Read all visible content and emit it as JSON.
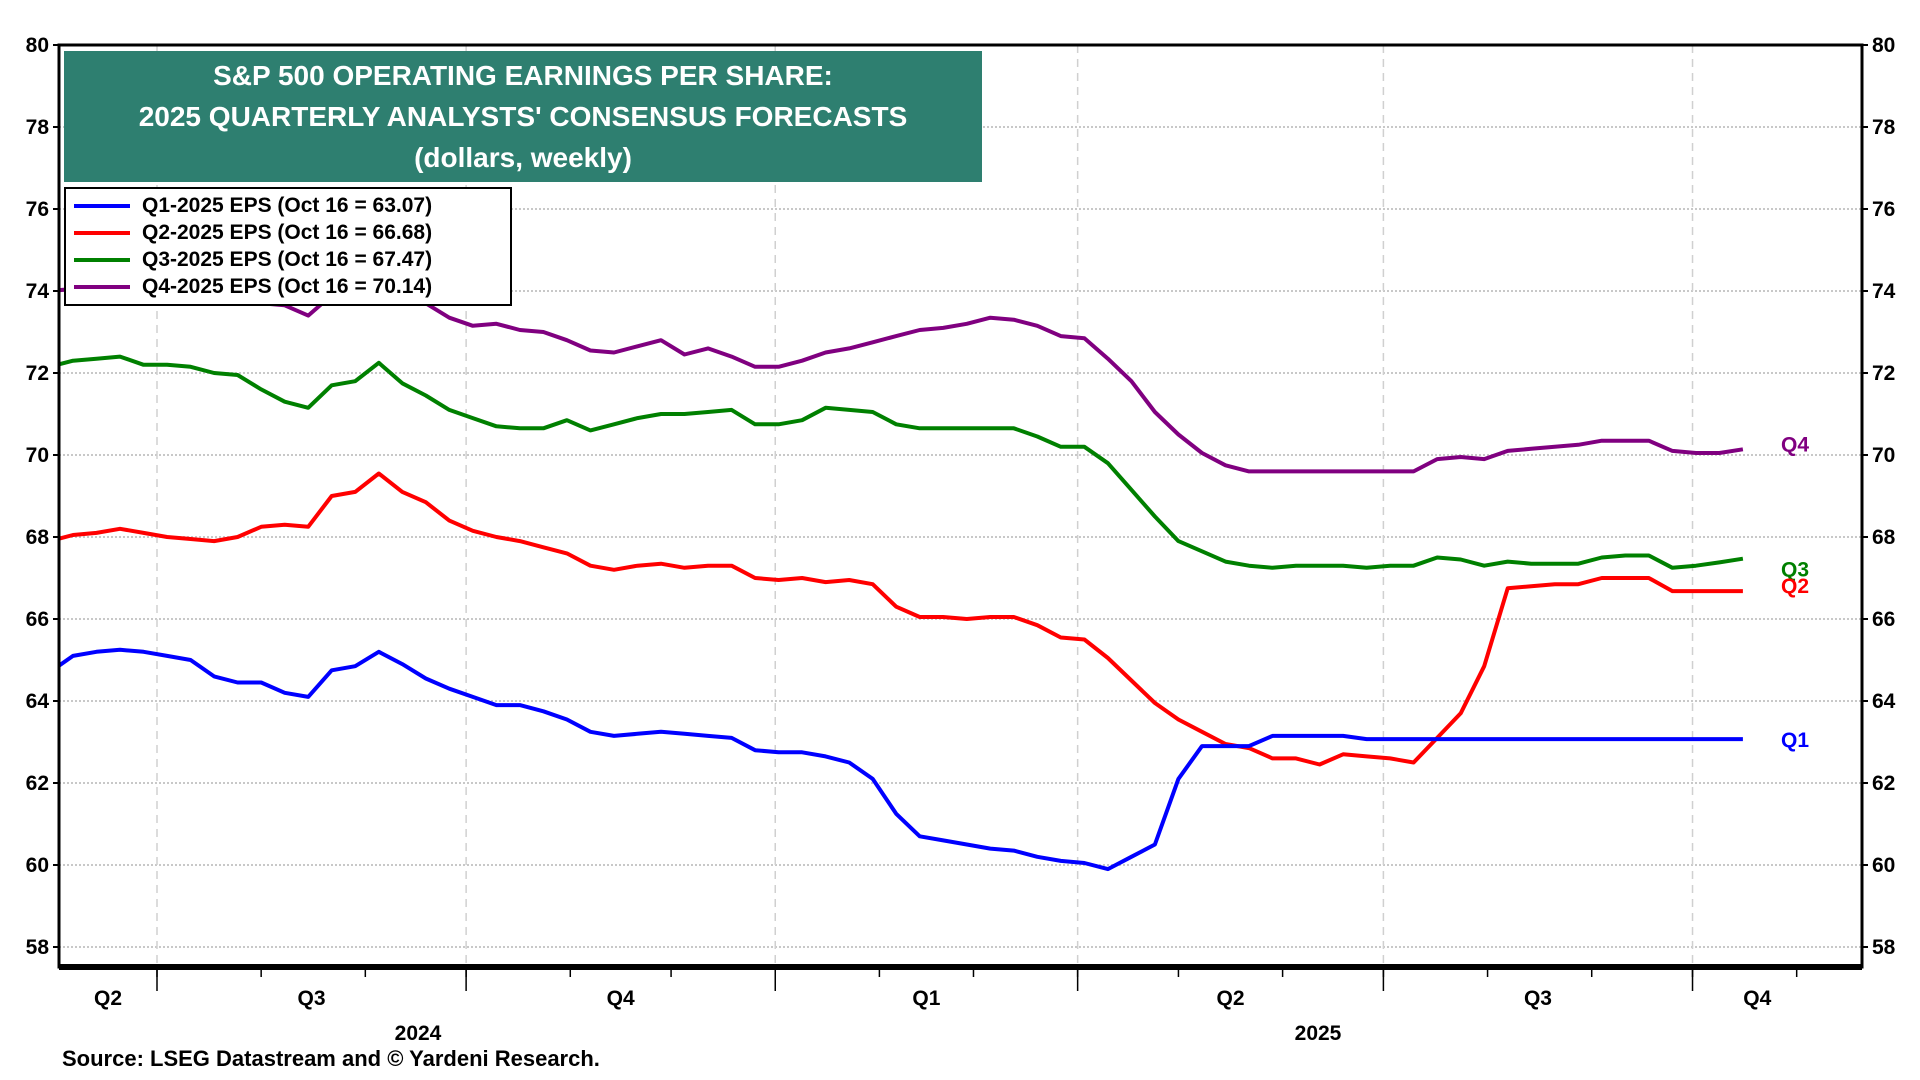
{
  "chart_data": {
    "type": "line",
    "title": [
      "S&P 500 OPERATING EARNINGS PER SHARE:",
      "2025 QUARTERLY ANALYSTS' CONSENSUS FORECASTS",
      "(dollars, weekly)"
    ],
    "xlabel": "",
    "ylabel": "",
    "ylim": [
      58,
      80
    ],
    "yticks": [
      58,
      60,
      62,
      64,
      66,
      68,
      70,
      72,
      74,
      76,
      78,
      80
    ],
    "y_axis_both_sides": true,
    "xlim": [
      "2024-06-02",
      "2025-11-20"
    ],
    "x_start": "2024-05-30",
    "x_step_days": 7,
    "x_quarter_labels": [
      "Q2",
      "Q3",
      "Q4",
      "Q1",
      "Q2",
      "Q3",
      "Q4"
    ],
    "x_year_labels": [
      "2024",
      "2025"
    ],
    "grid": true,
    "legend_placement": "top-left",
    "series": [
      {
        "name": "Q1-2025 EPS (Oct 16 = 63.07)",
        "end_label": "Q1",
        "color": "#0000ff",
        "values": [
          64.7,
          65.1,
          65.2,
          65.25,
          65.2,
          65.1,
          65.0,
          64.6,
          64.45,
          64.45,
          64.2,
          64.1,
          64.75,
          64.85,
          65.2,
          64.9,
          64.55,
          64.3,
          64.1,
          63.9,
          63.9,
          63.75,
          63.55,
          63.25,
          63.15,
          63.2,
          63.25,
          63.2,
          63.15,
          63.1,
          62.8,
          62.75,
          62.75,
          62.65,
          62.5,
          62.1,
          61.25,
          60.7,
          60.6,
          60.5,
          60.4,
          60.35,
          60.2,
          60.1,
          60.05,
          59.9,
          60.2,
          60.5,
          62.1,
          62.9,
          62.9,
          62.9,
          63.15,
          63.15,
          63.15,
          63.15,
          63.07,
          63.07,
          63.07,
          63.07,
          63.07,
          63.07,
          63.07,
          63.07,
          63.07,
          63.07,
          63.07,
          63.07,
          63.07,
          63.07,
          63.07,
          63.07,
          63.07
        ]
      },
      {
        "name": "Q2-2025 EPS (Oct 16 = 66.68)",
        "end_label": "Q2",
        "color": "#ff0000",
        "values": [
          67.9,
          68.05,
          68.1,
          68.2,
          68.1,
          68.0,
          67.95,
          67.9,
          68.0,
          68.25,
          68.3,
          68.25,
          69.0,
          69.1,
          69.55,
          69.1,
          68.85,
          68.4,
          68.15,
          68.0,
          67.9,
          67.75,
          67.6,
          67.3,
          67.2,
          67.3,
          67.35,
          67.25,
          67.3,
          67.3,
          67.0,
          66.95,
          67.0,
          66.9,
          66.95,
          66.85,
          66.3,
          66.05,
          66.05,
          66.0,
          66.05,
          66.05,
          65.85,
          65.55,
          65.5,
          65.05,
          64.5,
          63.95,
          63.55,
          63.25,
          62.95,
          62.85,
          62.6,
          62.6,
          62.45,
          62.7,
          62.65,
          62.6,
          62.5,
          63.1,
          63.7,
          64.85,
          66.75,
          66.8,
          66.85,
          66.85,
          67.0,
          67.0,
          67.0,
          66.68,
          66.68,
          66.68,
          66.68
        ]
      },
      {
        "name": "Q3-2025 EPS (Oct 16 = 67.47)",
        "end_label": "Q3",
        "color": "#008000",
        "values": [
          72.15,
          72.3,
          72.35,
          72.4,
          72.2,
          72.2,
          72.15,
          72.0,
          71.95,
          71.6,
          71.3,
          71.15,
          71.7,
          71.8,
          72.25,
          71.75,
          71.45,
          71.1,
          70.9,
          70.7,
          70.65,
          70.65,
          70.85,
          70.6,
          70.75,
          70.9,
          71.0,
          71.0,
          71.05,
          71.1,
          70.75,
          70.75,
          70.85,
          71.15,
          71.1,
          71.05,
          70.75,
          70.65,
          70.65,
          70.65,
          70.65,
          70.65,
          70.45,
          70.2,
          70.2,
          69.8,
          69.15,
          68.5,
          67.9,
          67.65,
          67.4,
          67.3,
          67.25,
          67.3,
          67.3,
          67.3,
          67.25,
          67.3,
          67.3,
          67.5,
          67.45,
          67.3,
          67.4,
          67.35,
          67.35,
          67.35,
          67.5,
          67.55,
          67.55,
          67.25,
          67.3,
          67.38,
          67.47
        ]
      },
      {
        "name": "Q4-2025 EPS (Oct 16 = 70.14)",
        "end_label": "Q4",
        "color": "#800080",
        "values": [
          74.0,
          74.05,
          74.1,
          74.1,
          74.0,
          73.95,
          73.95,
          73.9,
          73.85,
          73.7,
          73.65,
          73.4,
          73.9,
          74.0,
          74.1,
          73.95,
          73.7,
          73.35,
          73.15,
          73.2,
          73.05,
          73.0,
          72.8,
          72.55,
          72.5,
          72.65,
          72.8,
          72.45,
          72.6,
          72.4,
          72.15,
          72.15,
          72.3,
          72.5,
          72.6,
          72.75,
          72.9,
          73.05,
          73.1,
          73.2,
          73.35,
          73.3,
          73.15,
          72.9,
          72.85,
          72.35,
          71.8,
          71.05,
          70.5,
          70.05,
          69.75,
          69.6,
          69.6,
          69.6,
          69.6,
          69.6,
          69.6,
          69.6,
          69.6,
          69.9,
          69.95,
          69.9,
          70.1,
          70.15,
          70.2,
          70.25,
          70.35,
          70.35,
          70.35,
          70.1,
          70.05,
          70.05,
          70.14
        ]
      }
    ],
    "source": "Source: LSEG Datastream and © Yardeni Research."
  }
}
